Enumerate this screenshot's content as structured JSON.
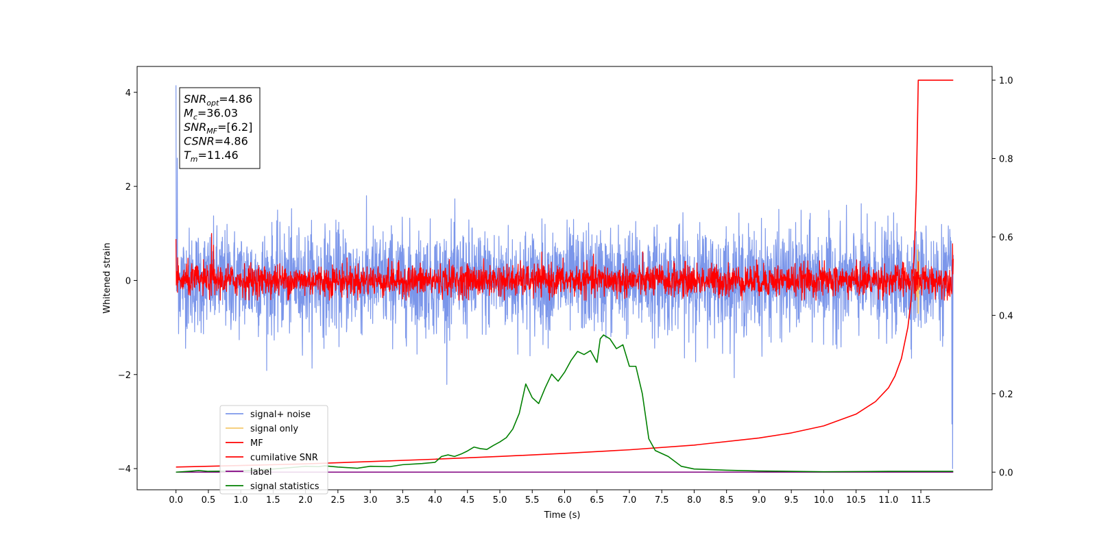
{
  "chart_data": {
    "type": "line",
    "title": "",
    "xlabel": "Time (s)",
    "ylabel": "Whitened strain",
    "ylabel_right": "",
    "xlim": [
      -0.6,
      12.6
    ],
    "ylim": [
      -4.45,
      4.55
    ],
    "ylim_right": [
      -0.045,
      1.035
    ],
    "x_ticks": [
      0.0,
      0.5,
      1.0,
      1.5,
      2.0,
      2.5,
      3.0,
      3.5,
      4.0,
      4.5,
      5.0,
      5.5,
      6.0,
      6.5,
      7.0,
      7.5,
      8.0,
      8.5,
      9.0,
      9.5,
      10.0,
      10.5,
      11.0,
      11.5
    ],
    "x_tick_labels": [
      "0.0",
      "0.5",
      "1.0",
      "1.5",
      "2.0",
      "2.5",
      "3.0",
      "3.5",
      "4.0",
      "4.5",
      "5.0",
      "5.5",
      "6.0",
      "6.5",
      "7.0",
      "7.5",
      "8.0",
      "8.5",
      "9.0",
      "9.5",
      "10.0",
      "10.5",
      "11.0",
      "11.5"
    ],
    "y_ticks": [
      -4,
      -2,
      0,
      2,
      4
    ],
    "y_tick_labels": [
      "−4",
      "−2",
      "0",
      "2",
      "4"
    ],
    "y_ticks_right": [
      0.0,
      0.2,
      0.4,
      0.6,
      0.8,
      1.0
    ],
    "y_tick_labels_right": [
      "0.0",
      "0.2",
      "0.4",
      "0.6",
      "0.8",
      "1.0"
    ],
    "grid": false,
    "legend_position": "lower-left",
    "series": [
      {
        "name": "signal+ noise",
        "axis": "left",
        "color": "#7b96ea",
        "kind": "noise",
        "x_range": [
          0.0,
          12.0
        ],
        "n_points": 3000,
        "std": 0.55,
        "max": 2.38,
        "min": -2.25,
        "spikes": [
          {
            "x": 0.0,
            "y": 4.15
          },
          {
            "x": 0.02,
            "y": 2.6
          },
          {
            "x": 11.99,
            "y": -4.0
          },
          {
            "x": 11.98,
            "y": -3.05
          }
        ],
        "summary": "dense gaussian-like noise mostly within [-1.8, 2.4]"
      },
      {
        "name": "signal only",
        "axis": "left",
        "color": "#f5c86b",
        "kind": "line",
        "x": [
          11.4,
          11.42,
          11.44,
          11.45,
          11.46,
          11.47,
          11.48,
          11.5
        ],
        "y": [
          0.0,
          0.15,
          -0.35,
          0.65,
          -0.7,
          0.4,
          -0.2,
          0.0
        ]
      },
      {
        "name": "MF",
        "axis": "left",
        "color": "#ff0000",
        "kind": "noise",
        "x_range": [
          0.0,
          12.0
        ],
        "n_points": 2600,
        "std": 0.17,
        "max": 1.0,
        "min": -0.42,
        "spikes": [
          {
            "x": 0.0,
            "y": 0.88
          },
          {
            "x": 0.55,
            "y": 1.0
          },
          {
            "x": 0.58,
            "y": 0.75
          },
          {
            "x": 11.99,
            "y": 0.78
          }
        ],
        "summary": "red noisy trace mostly within [-0.35, 0.55]"
      },
      {
        "name": "cumilative SNR",
        "axis": "right",
        "color": "#ff0000",
        "kind": "line",
        "x": [
          0.0,
          0.5,
          1.0,
          2.0,
          3.0,
          4.0,
          5.0,
          6.0,
          7.0,
          8.0,
          9.0,
          9.5,
          10.0,
          10.5,
          10.8,
          11.0,
          11.1,
          11.2,
          11.3,
          11.35,
          11.4,
          11.43,
          11.46,
          11.5,
          12.0
        ],
        "y": [
          0.013,
          0.015,
          0.017,
          0.021,
          0.027,
          0.033,
          0.04,
          0.048,
          0.057,
          0.069,
          0.087,
          0.1,
          0.118,
          0.148,
          0.18,
          0.215,
          0.245,
          0.29,
          0.37,
          0.44,
          0.56,
          0.72,
          1.0,
          1.0,
          1.0
        ]
      },
      {
        "name": "label",
        "axis": "right",
        "color": "#800080",
        "kind": "line",
        "x": [
          0.0,
          12.0
        ],
        "y": [
          0.0,
          0.0
        ]
      },
      {
        "name": "signal statistics",
        "axis": "right",
        "color": "#008000",
        "kind": "line",
        "x": [
          0.0,
          0.2,
          0.35,
          0.5,
          1.0,
          1.5,
          1.8,
          2.0,
          2.2,
          2.3,
          2.5,
          2.8,
          3.0,
          3.3,
          3.5,
          3.8,
          4.0,
          4.1,
          4.2,
          4.3,
          4.4,
          4.5,
          4.6,
          4.7,
          4.8,
          4.9,
          5.0,
          5.1,
          5.2,
          5.3,
          5.4,
          5.5,
          5.6,
          5.7,
          5.8,
          5.9,
          6.0,
          6.1,
          6.2,
          6.3,
          6.4,
          6.5,
          6.55,
          6.6,
          6.65,
          6.7,
          6.8,
          6.9,
          7.0,
          7.1,
          7.2,
          7.3,
          7.4,
          7.6,
          7.8,
          8.0,
          8.5,
          9.0,
          10.0,
          11.0,
          12.0
        ],
        "y": [
          0.0,
          0.002,
          0.004,
          0.002,
          0.003,
          0.008,
          0.012,
          0.015,
          0.014,
          0.016,
          0.013,
          0.01,
          0.015,
          0.014,
          0.019,
          0.022,
          0.025,
          0.04,
          0.044,
          0.04,
          0.046,
          0.054,
          0.064,
          0.06,
          0.058,
          0.068,
          0.077,
          0.088,
          0.11,
          0.15,
          0.225,
          0.19,
          0.175,
          0.215,
          0.25,
          0.232,
          0.255,
          0.285,
          0.308,
          0.3,
          0.31,
          0.28,
          0.34,
          0.35,
          0.345,
          0.34,
          0.315,
          0.325,
          0.27,
          0.27,
          0.2,
          0.085,
          0.055,
          0.04,
          0.015,
          0.008,
          0.005,
          0.003,
          0.001,
          0.002,
          0.002
        ]
      }
    ],
    "annotation_box": {
      "lines": [
        {
          "main": "SNR",
          "sub": "opt",
          "value": "=4.86"
        },
        {
          "main": "M",
          "sub": "c",
          "value": "=36.03"
        },
        {
          "main": "SNR",
          "sub": "MF",
          "value": "=[6.2]"
        },
        {
          "main": "CSNR",
          "sub": "",
          "value": "=4.86"
        },
        {
          "main": "T",
          "sub": "m",
          "value": "=11.46"
        }
      ]
    }
  }
}
